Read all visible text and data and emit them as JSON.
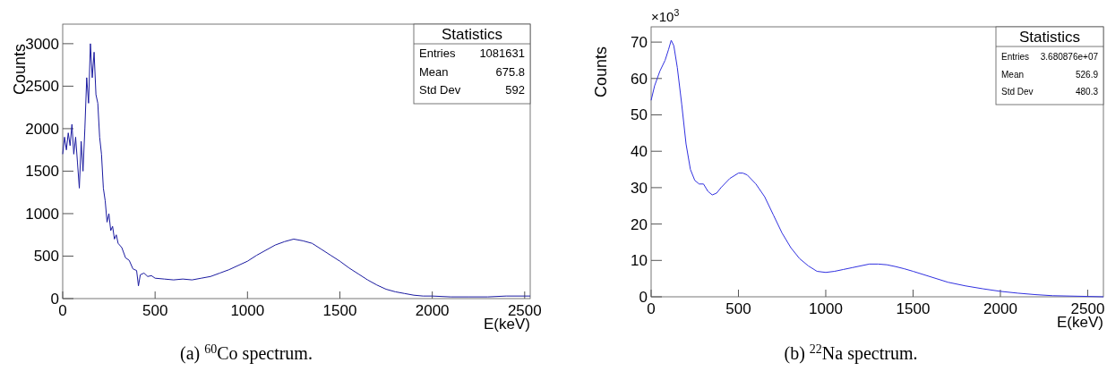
{
  "chart_data": [
    {
      "type": "line",
      "xlabel": "E(keV)",
      "ylabel": "Counts",
      "xlim": [
        0,
        2530
      ],
      "ylim": [
        0,
        3230
      ],
      "xticks": [
        0,
        500,
        1000,
        1500,
        2000,
        2500
      ],
      "yticks": [
        0,
        500,
        1000,
        1500,
        2000,
        2500,
        3000
      ],
      "annotations": [
        "(a) $^{60}$Co spectrum.",
        "Statistics",
        "Entries",
        "1081631",
        "Mean",
        "675.8",
        "Std Dev",
        "592"
      ],
      "series": [
        {
          "color": "#1a1aa0",
          "x": [
            0,
            10,
            20,
            30,
            40,
            50,
            60,
            70,
            80,
            90,
            100,
            110,
            120,
            130,
            140,
            150,
            160,
            170,
            180,
            190,
            200,
            210,
            220,
            230,
            240,
            250,
            260,
            270,
            280,
            290,
            300,
            320,
            340,
            360,
            380,
            400,
            410,
            420,
            440,
            460,
            480,
            500,
            550,
            600,
            650,
            700,
            750,
            800,
            850,
            900,
            950,
            1000,
            1050,
            1100,
            1150,
            1200,
            1250,
            1300,
            1350,
            1400,
            1450,
            1500,
            1550,
            1600,
            1650,
            1700,
            1750,
            1800,
            1850,
            1900,
            1950,
            2000,
            2100,
            2200,
            2300,
            2400,
            2500,
            2530
          ],
          "values": [
            1700,
            1900,
            1750,
            1950,
            1800,
            2050,
            1700,
            1900,
            1600,
            1300,
            1850,
            1500,
            2000,
            2600,
            2300,
            3000,
            2600,
            2900,
            2400,
            2300,
            1900,
            1700,
            1300,
            1150,
            900,
            1000,
            800,
            850,
            700,
            750,
            650,
            600,
            480,
            450,
            350,
            330,
            150,
            280,
            300,
            260,
            270,
            240,
            230,
            220,
            230,
            220,
            240,
            260,
            300,
            340,
            390,
            440,
            510,
            570,
            630,
            670,
            700,
            680,
            650,
            580,
            510,
            440,
            360,
            290,
            220,
            160,
            110,
            80,
            60,
            40,
            30,
            30,
            20,
            20,
            20,
            30,
            30,
            30
          ]
        }
      ]
    },
    {
      "type": "line",
      "xlabel": "E(keV)",
      "ylabel": "Counts",
      "xlim": [
        0,
        2590
      ],
      "ylim": [
        0,
        74.2
      ],
      "xticks": [
        0,
        500,
        1000,
        1500,
        2000,
        2500
      ],
      "yticks": [
        0,
        10,
        20,
        30,
        40,
        50,
        60,
        70
      ],
      "annotations": [
        "(b) $^{22}$Na spectrum.",
        "Statistics",
        "Entries",
        "3.680876e+07",
        "Mean",
        "526.9",
        "Std Dev",
        "480.3",
        "×10$^{3}$"
      ],
      "series": [
        {
          "color": "#3030e0",
          "x": [
            0,
            20,
            50,
            80,
            100,
            115,
            130,
            150,
            175,
            200,
            225,
            250,
            275,
            300,
            325,
            350,
            375,
            400,
            450,
            500,
            525,
            550,
            600,
            650,
            700,
            750,
            800,
            850,
            900,
            950,
            1000,
            1050,
            1100,
            1150,
            1200,
            1250,
            1300,
            1350,
            1400,
            1450,
            1500,
            1600,
            1700,
            1800,
            1900,
            2000,
            2100,
            2200,
            2300,
            2400,
            2500,
            2590
          ],
          "values": [
            54,
            58,
            62,
            65,
            68,
            70.5,
            69,
            63,
            53,
            42,
            35,
            32,
            31,
            31,
            29,
            28,
            28.5,
            30,
            32.5,
            34,
            34,
            33.5,
            31,
            27.5,
            22.5,
            17.5,
            13.5,
            10.5,
            8.5,
            7,
            6.7,
            7,
            7.5,
            8,
            8.5,
            9,
            9,
            8.8,
            8.3,
            7.7,
            7,
            5.5,
            4,
            3,
            2.2,
            1.5,
            1,
            0.6,
            0.3,
            0.2,
            0.1,
            0
          ]
        }
      ]
    }
  ]
}
